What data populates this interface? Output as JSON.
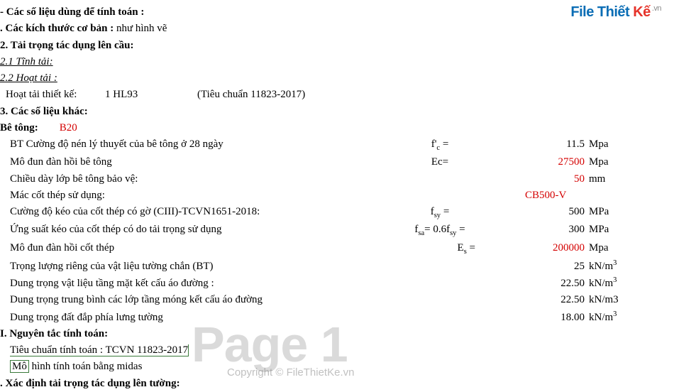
{
  "logo": {
    "p1": "File",
    "p2": " Thiết ",
    "p3": "Kế",
    "p4": ".vn"
  },
  "watermark": "Page 1",
  "copyright": "Copyright © FileThietKe.vn",
  "h": {
    "hI": "- Các số liệu dùng để tính toán :",
    "h1": ". Các kích thước cơ bản :",
    "h1b": "  như hình vẽ",
    "h2": "2. Tải trọng tác dụng lên cầu:",
    "h21": "2.1 Tĩnh tải:",
    "h22": "2.2 Hoạt tải :",
    "hoattai_lab": "Hoạt tải thiết kế:",
    "hoattai_val": "1 HL93",
    "hoattai_note": "(Tiêu chuẩn 11823-2017)",
    "h3": "3. Các số liệu khác:",
    "betong_lab": "Bê tông:",
    "betong_val": "B20",
    "hII": "I. Nguyên tắc tính toán:",
    "tieuchuan": "Tiêu chuẩn tính toán : TCVN 11823-2017",
    "mo_a": "Mô",
    "mo_b": "hình tính toán bằng midas",
    "hXac": ". Xác định tải trọng tác dụng lên tường:"
  },
  "rows": {
    "r1": {
      "lab": "BT Cường độ nén  lý thuyết của bê tông ở 28 ngày",
      "sym": "f'<sub>c</sub> =",
      "val": "11.5",
      "unit": "Mpa",
      "valred": false
    },
    "r2": {
      "lab": "Mô đun đàn hồi bê tông",
      "sym": "Ec=",
      "val": "27500",
      "unit": "Mpa",
      "valred": true
    },
    "r3": {
      "lab": "Chiều dày lớp bê tông bảo vệ:",
      "sym": "",
      "val": "50",
      "unit": "mm",
      "valred": true
    },
    "r4": {
      "lab": "Mác cốt thép sử dụng:",
      "sym": "",
      "val": "CB500-V",
      "unit": "",
      "valred": true,
      "valleft": true
    },
    "r5": {
      "lab": "Cường độ kéo của cốt thép có gờ (CIII)-TCVN1651-2018:",
      "sym": "f<sub>sy</sub> =",
      "val": "500",
      "unit": "MPa",
      "valred": false
    },
    "r6": {
      "lab": "Ứng suất kéo của cốt thép có do tải trọng sử dụng",
      "sym": "f<sub>sa</sub>= 0.6f<sub>sy</sub> =",
      "val": "300",
      "unit": "MPa",
      "valred": false
    },
    "r7": {
      "lab": "Mô đun đàn hồi cốt thép",
      "sym": "E<sub>s</sub> =",
      "val": "200000",
      "unit": "Mpa",
      "valred": true,
      "symright": true
    },
    "r8": {
      "lab": "Trọng lượng riêng của vật liệu tường chắn (BT)",
      "sym": "",
      "val": "25",
      "unit": "kN/m<sup>3</sup>",
      "valred": false
    },
    "r9": {
      "lab": "Dung trọng vật liệu  tầng mặt kết cấu áo đường :",
      "sym": "",
      "val": "22.50",
      "unit": "kN/m<sup>3</sup>",
      "valred": false
    },
    "r10": {
      "lab": "Dung trọng trung bình các lớp tầng móng kết cấu áo đường",
      "sym": "",
      "val": "22.50",
      "unit": "kN/m3",
      "valred": false
    },
    "r11": {
      "lab": "Dung trọng đất đắp phía lưng tường",
      "sym": "",
      "val": "18.00",
      "unit": "kN/m<sup>3</sup>",
      "valred": false
    }
  },
  "colors": {
    "red": "#d40000",
    "logo_blue": "#0a6db5",
    "logo_red": "#e6332a",
    "watermark": "rgba(150,150,150,0.35)"
  }
}
